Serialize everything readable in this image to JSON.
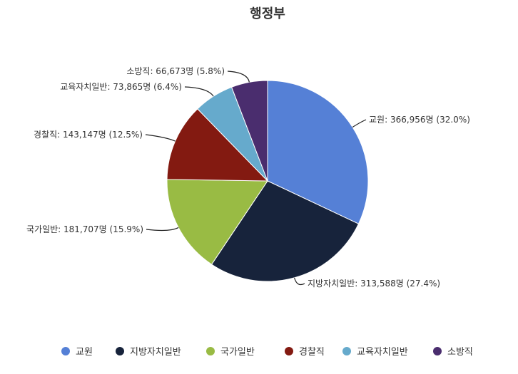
{
  "chart_data": {
    "type": "pie",
    "title": "행정부",
    "legend_position": "bottom",
    "slices": [
      {
        "name": "교원",
        "value": 366956,
        "label": "교원: 366,956명 (32.0%)",
        "color": "#5580d6"
      },
      {
        "name": "지방자치일반",
        "value": 313588,
        "label": "지방자치일반: 313,588명 (27.4%)",
        "color": "#17233b"
      },
      {
        "name": "국가일반",
        "value": 181707,
        "label": "국가일반: 181,707명 (15.9%)",
        "color": "#99bb44"
      },
      {
        "name": "경찰직",
        "value": 143147,
        "label": "경찰직: 143,147명 (12.5%)",
        "color": "#831a11"
      },
      {
        "name": "교육자치일반",
        "value": 73865,
        "label": "교육자치일반: 73,865명 (6.4%)",
        "color": "#66aacc"
      },
      {
        "name": "소방직",
        "value": 66673,
        "label": "소방직: 66,673명 (5.8%)",
        "color": "#4a2d6e"
      }
    ]
  }
}
